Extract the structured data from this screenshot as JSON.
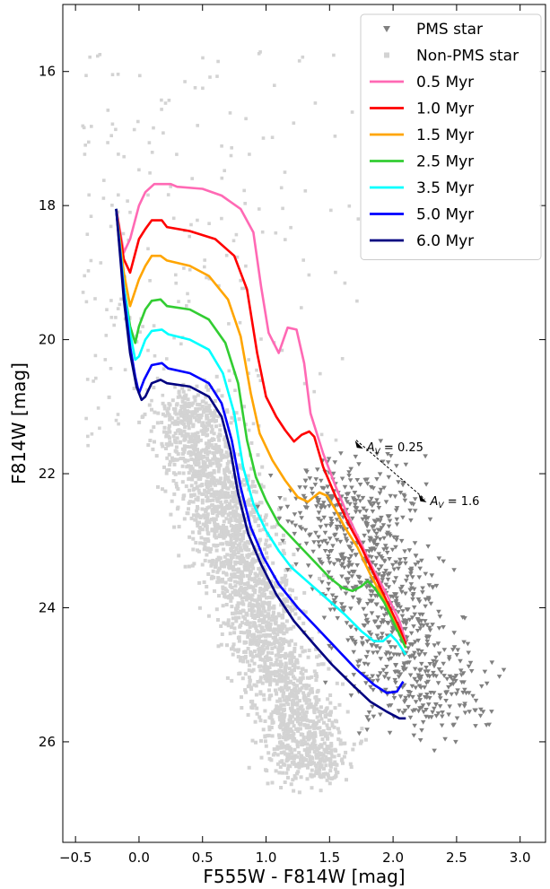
{
  "chart_data": {
    "type": "scatter",
    "xlabel": "F555W - F814W [mag]",
    "ylabel": "F814W [mag]",
    "xlim": [
      -0.6,
      3.2
    ],
    "ylim": [
      27.5,
      15.0
    ],
    "y_inverted": true,
    "xticks": [
      "−0.5",
      "0.0",
      "0.5",
      "1.0",
      "1.5",
      "2.0",
      "2.5",
      "3.0"
    ],
    "xtick_values": [
      -0.5,
      0.0,
      0.5,
      1.0,
      1.5,
      2.0,
      2.5,
      3.0
    ],
    "yticks": [
      "16",
      "18",
      "20",
      "22",
      "24",
      "26"
    ],
    "ytick_values": [
      16,
      18,
      20,
      22,
      24,
      26
    ],
    "grid": false,
    "legend_position": "top-right",
    "legend": [
      {
        "label": "PMS star",
        "kind": "marker",
        "marker": "triangle-down",
        "color": "#808080"
      },
      {
        "label": "Non-PMS star",
        "kind": "marker",
        "marker": "square",
        "color": "#d3d3d3"
      },
      {
        "label": "0.5 Myr",
        "kind": "line",
        "color": "#ff69b4"
      },
      {
        "label": "1.0 Myr",
        "kind": "line",
        "color": "#ff0000"
      },
      {
        "label": "1.5 Myr",
        "kind": "line",
        "color": "#ffa500"
      },
      {
        "label": "2.5 Myr",
        "kind": "line",
        "color": "#32cd32"
      },
      {
        "label": "3.5 Myr",
        "kind": "line",
        "color": "#00ffff"
      },
      {
        "label": "5.0 Myr",
        "kind": "line",
        "color": "#0000ff"
      },
      {
        "label": "6.0 Myr",
        "kind": "line",
        "color": "#000080"
      }
    ],
    "series": [
      {
        "name": "0.5 Myr",
        "color": "#ff69b4",
        "points": [
          [
            -0.18,
            18.05
          ],
          [
            -0.12,
            18.7
          ],
          [
            -0.07,
            18.5
          ],
          [
            0.0,
            18.0
          ],
          [
            0.05,
            17.8
          ],
          [
            0.12,
            17.68
          ],
          [
            0.25,
            17.68
          ],
          [
            0.3,
            17.72
          ],
          [
            0.5,
            17.75
          ],
          [
            0.65,
            17.85
          ],
          [
            0.8,
            18.05
          ],
          [
            0.9,
            18.4
          ],
          [
            0.96,
            19.2
          ],
          [
            1.02,
            19.9
          ],
          [
            1.1,
            20.2
          ],
          [
            1.17,
            19.82
          ],
          [
            1.24,
            19.85
          ],
          [
            1.3,
            20.35
          ],
          [
            1.35,
            21.1
          ],
          [
            1.45,
            21.7
          ],
          [
            1.55,
            22.2
          ],
          [
            1.65,
            22.65
          ],
          [
            1.75,
            23.05
          ],
          [
            1.85,
            23.45
          ],
          [
            1.95,
            23.8
          ],
          [
            2.05,
            24.2
          ],
          [
            2.1,
            24.5
          ]
        ]
      },
      {
        "name": "1.0 Myr",
        "color": "#ff0000",
        "points": [
          [
            -0.18,
            18.05
          ],
          [
            -0.12,
            18.8
          ],
          [
            -0.07,
            19.0
          ],
          [
            0.0,
            18.5
          ],
          [
            0.05,
            18.35
          ],
          [
            0.1,
            18.22
          ],
          [
            0.18,
            18.22
          ],
          [
            0.22,
            18.32
          ],
          [
            0.4,
            18.38
          ],
          [
            0.6,
            18.5
          ],
          [
            0.75,
            18.75
          ],
          [
            0.85,
            19.25
          ],
          [
            0.93,
            20.2
          ],
          [
            1.0,
            20.85
          ],
          [
            1.08,
            21.15
          ],
          [
            1.15,
            21.35
          ],
          [
            1.22,
            21.52
          ],
          [
            1.28,
            21.42
          ],
          [
            1.34,
            21.37
          ],
          [
            1.38,
            21.45
          ],
          [
            1.45,
            21.9
          ],
          [
            1.55,
            22.35
          ],
          [
            1.65,
            22.75
          ],
          [
            1.75,
            23.1
          ],
          [
            1.85,
            23.5
          ],
          [
            1.95,
            23.9
          ],
          [
            2.05,
            24.3
          ],
          [
            2.1,
            24.55
          ]
        ]
      },
      {
        "name": "1.5 Myr",
        "color": "#ffa500",
        "points": [
          [
            -0.18,
            18.05
          ],
          [
            -0.12,
            19.0
          ],
          [
            -0.07,
            19.5
          ],
          [
            0.0,
            19.1
          ],
          [
            0.05,
            18.9
          ],
          [
            0.1,
            18.75
          ],
          [
            0.17,
            18.75
          ],
          [
            0.22,
            18.82
          ],
          [
            0.4,
            18.9
          ],
          [
            0.55,
            19.05
          ],
          [
            0.7,
            19.4
          ],
          [
            0.8,
            19.95
          ],
          [
            0.88,
            20.8
          ],
          [
            0.95,
            21.4
          ],
          [
            1.05,
            21.8
          ],
          [
            1.15,
            22.1
          ],
          [
            1.25,
            22.35
          ],
          [
            1.33,
            22.42
          ],
          [
            1.42,
            22.28
          ],
          [
            1.48,
            22.33
          ],
          [
            1.55,
            22.55
          ],
          [
            1.62,
            22.8
          ],
          [
            1.72,
            23.1
          ],
          [
            1.82,
            23.5
          ],
          [
            1.92,
            23.85
          ],
          [
            2.02,
            24.25
          ],
          [
            2.1,
            24.6
          ]
        ]
      },
      {
        "name": "2.5 Myr",
        "color": "#32cd32",
        "points": [
          [
            -0.18,
            18.05
          ],
          [
            -0.12,
            19.2
          ],
          [
            -0.07,
            19.8
          ],
          [
            -0.03,
            20.05
          ],
          [
            0.0,
            19.8
          ],
          [
            0.05,
            19.55
          ],
          [
            0.1,
            19.42
          ],
          [
            0.17,
            19.4
          ],
          [
            0.22,
            19.5
          ],
          [
            0.4,
            19.55
          ],
          [
            0.55,
            19.7
          ],
          [
            0.68,
            20.05
          ],
          [
            0.78,
            20.65
          ],
          [
            0.85,
            21.5
          ],
          [
            0.92,
            22.05
          ],
          [
            1.0,
            22.4
          ],
          [
            1.1,
            22.75
          ],
          [
            1.2,
            22.95
          ],
          [
            1.3,
            23.15
          ],
          [
            1.4,
            23.35
          ],
          [
            1.5,
            23.55
          ],
          [
            1.6,
            23.7
          ],
          [
            1.68,
            23.75
          ],
          [
            1.75,
            23.68
          ],
          [
            1.8,
            23.6
          ],
          [
            1.86,
            23.72
          ],
          [
            1.93,
            23.92
          ],
          [
            2.0,
            24.2
          ],
          [
            2.1,
            24.6
          ]
        ]
      },
      {
        "name": "3.5 Myr",
        "color": "#00ffff",
        "points": [
          [
            -0.18,
            18.05
          ],
          [
            -0.12,
            19.2
          ],
          [
            -0.07,
            19.9
          ],
          [
            -0.03,
            20.3
          ],
          [
            0.0,
            20.25
          ],
          [
            0.05,
            20.0
          ],
          [
            0.1,
            19.87
          ],
          [
            0.18,
            19.85
          ],
          [
            0.23,
            19.92
          ],
          [
            0.4,
            20.0
          ],
          [
            0.55,
            20.15
          ],
          [
            0.66,
            20.5
          ],
          [
            0.75,
            21.1
          ],
          [
            0.82,
            21.9
          ],
          [
            0.9,
            22.45
          ],
          [
            1.0,
            22.85
          ],
          [
            1.1,
            23.15
          ],
          [
            1.2,
            23.4
          ],
          [
            1.35,
            23.65
          ],
          [
            1.5,
            23.9
          ],
          [
            1.62,
            24.1
          ],
          [
            1.75,
            24.35
          ],
          [
            1.85,
            24.5
          ],
          [
            1.92,
            24.5
          ],
          [
            1.98,
            24.4
          ],
          [
            2.03,
            24.5
          ],
          [
            2.1,
            24.7
          ]
        ]
      },
      {
        "name": "5.0 Myr",
        "color": "#0000ff",
        "points": [
          [
            -0.18,
            18.05
          ],
          [
            -0.12,
            19.3
          ],
          [
            -0.07,
            20.1
          ],
          [
            -0.03,
            20.55
          ],
          [
            0.0,
            20.8
          ],
          [
            0.04,
            20.6
          ],
          [
            0.1,
            20.38
          ],
          [
            0.18,
            20.35
          ],
          [
            0.23,
            20.43
          ],
          [
            0.4,
            20.5
          ],
          [
            0.55,
            20.65
          ],
          [
            0.65,
            20.95
          ],
          [
            0.73,
            21.5
          ],
          [
            0.8,
            22.2
          ],
          [
            0.88,
            22.8
          ],
          [
            0.98,
            23.25
          ],
          [
            1.1,
            23.65
          ],
          [
            1.25,
            24.0
          ],
          [
            1.4,
            24.3
          ],
          [
            1.55,
            24.6
          ],
          [
            1.7,
            24.9
          ],
          [
            1.85,
            25.15
          ],
          [
            1.95,
            25.27
          ],
          [
            2.03,
            25.25
          ],
          [
            2.08,
            25.1
          ]
        ]
      },
      {
        "name": "6.0 Myr",
        "color": "#000080",
        "points": [
          [
            -0.18,
            18.05
          ],
          [
            -0.12,
            19.4
          ],
          [
            -0.07,
            20.2
          ],
          [
            -0.02,
            20.7
          ],
          [
            0.02,
            20.9
          ],
          [
            0.05,
            20.85
          ],
          [
            0.1,
            20.65
          ],
          [
            0.17,
            20.6
          ],
          [
            0.22,
            20.65
          ],
          [
            0.4,
            20.7
          ],
          [
            0.55,
            20.85
          ],
          [
            0.65,
            21.15
          ],
          [
            0.72,
            21.65
          ],
          [
            0.78,
            22.3
          ],
          [
            0.86,
            22.9
          ],
          [
            0.96,
            23.35
          ],
          [
            1.08,
            23.8
          ],
          [
            1.22,
            24.2
          ],
          [
            1.38,
            24.55
          ],
          [
            1.52,
            24.85
          ],
          [
            1.68,
            25.15
          ],
          [
            1.82,
            25.4
          ],
          [
            1.95,
            25.55
          ],
          [
            2.05,
            25.65
          ],
          [
            2.1,
            25.65
          ]
        ]
      }
    ],
    "annotations": [
      {
        "label_prefix": "A",
        "label_sub": "V",
        "label_value": " = 0.25",
        "x": 1.72,
        "y": 21.6,
        "arrow_x": 1.75,
        "arrow_y": 21.6
      },
      {
        "label_prefix": "A",
        "label_sub": "V",
        "label_value": " = 1.6",
        "x": 2.22,
        "y": 22.35,
        "arrow_x": 2.25,
        "arrow_y": 22.4
      }
    ]
  }
}
